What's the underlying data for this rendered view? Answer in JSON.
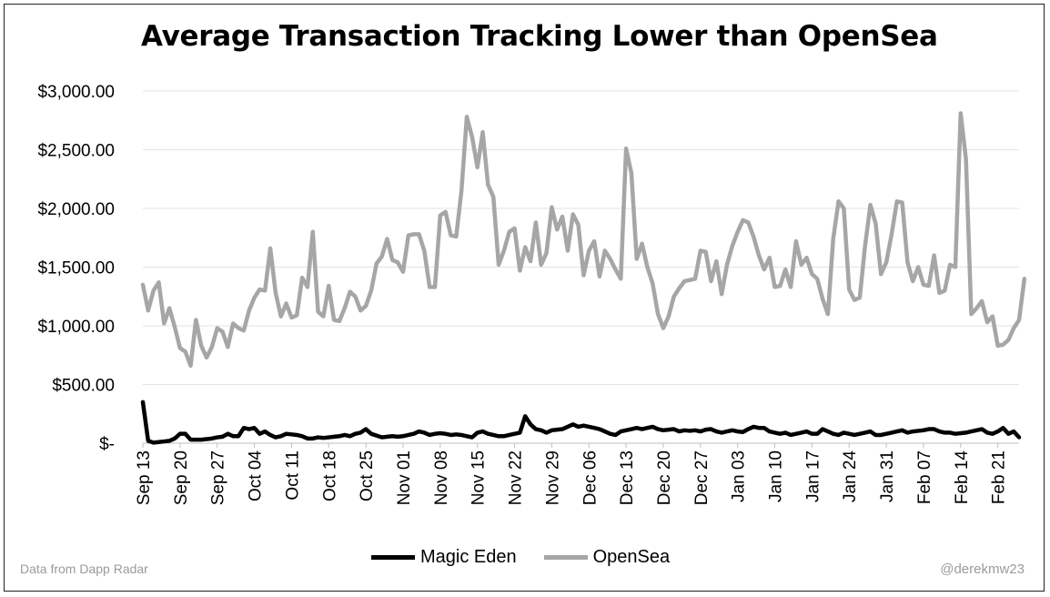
{
  "chart_data": {
    "type": "line",
    "title": "Average Transaction Tracking Lower than OpenSea",
    "xlabel": "",
    "ylabel": "",
    "ylim": [
      0,
      3000
    ],
    "yticks": [
      0,
      500,
      1000,
      1500,
      2000,
      2500,
      3000
    ],
    "ytick_labels": [
      "$-",
      "$500.00",
      "$1,000.00",
      "$1,500.00",
      "$2,000.00",
      "$2,500.00",
      "$3,000.00"
    ],
    "xtick_labels": [
      "Sep 13",
      "Sep 20",
      "Sep 27",
      "Oct 04",
      "Oct 11",
      "Oct 18",
      "Oct 25",
      "Nov 01",
      "Nov 08",
      "Nov 15",
      "Nov 22",
      "Nov 29",
      "Dec 06",
      "Dec 13",
      "Dec 20",
      "Dec 27",
      "Jan 03",
      "Jan 10",
      "Jan 17",
      "Jan 24",
      "Jan 31",
      "Feb 07",
      "Feb 14",
      "Feb 21"
    ],
    "days_between_ticks": 7,
    "legend_position": "bottom",
    "series": [
      {
        "name": "Magic Eden",
        "color": "#000000",
        "values": [
          350,
          20,
          5,
          10,
          15,
          20,
          40,
          80,
          80,
          30,
          30,
          30,
          35,
          40,
          50,
          55,
          80,
          60,
          60,
          130,
          120,
          130,
          80,
          100,
          70,
          50,
          60,
          80,
          75,
          70,
          60,
          40,
          40,
          50,
          45,
          50,
          55,
          60,
          70,
          60,
          80,
          90,
          120,
          80,
          65,
          50,
          55,
          60,
          55,
          60,
          70,
          80,
          100,
          90,
          70,
          80,
          85,
          80,
          70,
          75,
          70,
          60,
          50,
          90,
          100,
          80,
          70,
          60,
          60,
          70,
          80,
          90,
          230,
          160,
          120,
          110,
          90,
          110,
          115,
          120,
          140,
          160,
          140,
          150,
          140,
          130,
          120,
          100,
          80,
          70,
          100,
          110,
          120,
          130,
          120,
          130,
          140,
          120,
          110,
          115,
          120,
          100,
          110,
          105,
          110,
          100,
          115,
          120,
          100,
          90,
          100,
          110,
          100,
          95,
          120,
          140,
          130,
          130,
          100,
          90,
          80,
          90,
          70,
          80,
          90,
          100,
          80,
          80,
          120,
          100,
          80,
          70,
          90,
          80,
          70,
          80,
          90,
          100,
          70,
          70,
          80,
          90,
          100,
          110,
          90,
          100,
          105,
          110,
          120,
          120,
          100,
          90,
          90,
          80,
          85,
          90,
          100,
          110,
          120,
          90,
          80,
          100,
          130,
          80,
          100,
          50
        ]
      },
      {
        "name": "OpenSea",
        "color": "#a6a6a6",
        "values": [
          1350,
          1130,
          1300,
          1370,
          1020,
          1150,
          990,
          810,
          780,
          660,
          1050,
          830,
          730,
          820,
          980,
          950,
          820,
          1020,
          980,
          960,
          1130,
          1240,
          1310,
          1300,
          1660,
          1280,
          1080,
          1190,
          1070,
          1090,
          1410,
          1330,
          1800,
          1120,
          1080,
          1340,
          1050,
          1040,
          1150,
          1290,
          1250,
          1130,
          1170,
          1300,
          1530,
          1590,
          1740,
          1560,
          1540,
          1460,
          1770,
          1780,
          1780,
          1640,
          1330,
          1330,
          1940,
          1970,
          1770,
          1760,
          2150,
          2780,
          2610,
          2350,
          2650,
          2200,
          2100,
          1520,
          1640,
          1800,
          1830,
          1470,
          1670,
          1550,
          1880,
          1520,
          1620,
          2010,
          1820,
          1930,
          1640,
          1950,
          1860,
          1430,
          1640,
          1720,
          1420,
          1640,
          1570,
          1480,
          1400,
          2510,
          2300,
          1570,
          1700,
          1500,
          1360,
          1100,
          980,
          1080,
          1250,
          1320,
          1380,
          1390,
          1400,
          1640,
          1630,
          1380,
          1550,
          1270,
          1520,
          1680,
          1800,
          1900,
          1880,
          1760,
          1600,
          1480,
          1580,
          1330,
          1340,
          1480,
          1330,
          1720,
          1520,
          1580,
          1440,
          1400,
          1230,
          1100,
          1740,
          2060,
          2000,
          1310,
          1220,
          1240,
          1680,
          2030,
          1870,
          1440,
          1540,
          1780,
          2060,
          2050,
          1540,
          1380,
          1500,
          1350,
          1340,
          1600,
          1280,
          1300,
          1520,
          1500,
          2810,
          2420,
          1100,
          1150,
          1210,
          1030,
          1080,
          830,
          840,
          880,
          980,
          1050,
          1400
        ]
      }
    ]
  },
  "footer": {
    "source": "Data from Dapp Radar",
    "handle": "@derekmw23"
  }
}
